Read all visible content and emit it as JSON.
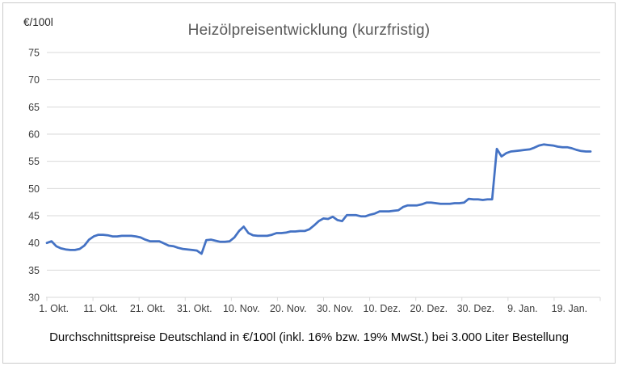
{
  "chart": {
    "colors": {
      "line": "#4472C4",
      "gridline": "#D9D9D9",
      "axis_line": "#D9D9D9",
      "axis_label": "#3D3D3D",
      "title": "#595959",
      "caption": "#0D0D0D"
    }
  },
  "chart_data": {
    "type": "line",
    "title": "Heizölpreisentwicklung (kurzfristig)",
    "y_axis_unit": "€/100l",
    "caption": "Durchschnittspreise Deutschland in €/100l (inkl. 16% bzw. 19% MwSt.) bei 3.000 Liter Bestellung",
    "ylim": [
      30,
      75
    ],
    "y_ticks": [
      30,
      35,
      40,
      45,
      50,
      55,
      60,
      65,
      70,
      75
    ],
    "x_tick_labels": [
      "1. Okt.",
      "11. Okt.",
      "21. Okt.",
      "31. Okt.",
      "10. Nov.",
      "20. Nov.",
      "30. Nov.",
      "10. Dez.",
      "20. Dez.",
      "30. Dez.",
      "9. Jan.",
      "19. Jan."
    ],
    "x_frequency": "daily",
    "x_start_label": "1. Okt.",
    "grid": true,
    "legend": "none",
    "values": [
      40.0,
      40.3,
      39.4,
      39.0,
      38.8,
      38.7,
      38.7,
      38.9,
      39.5,
      40.6,
      41.2,
      41.5,
      41.5,
      41.4,
      41.2,
      41.2,
      41.3,
      41.3,
      41.3,
      41.2,
      41.0,
      40.6,
      40.3,
      40.3,
      40.3,
      39.9,
      39.5,
      39.4,
      39.1,
      38.9,
      38.8,
      38.7,
      38.6,
      38.0,
      40.5,
      40.6,
      40.4,
      40.2,
      40.2,
      40.3,
      41.0,
      42.2,
      43.0,
      41.8,
      41.4,
      41.3,
      41.3,
      41.3,
      41.5,
      41.8,
      41.8,
      41.9,
      42.1,
      42.1,
      42.2,
      42.2,
      42.5,
      43.2,
      44.0,
      44.5,
      44.4,
      44.8,
      44.2,
      44.0,
      45.1,
      45.1,
      45.1,
      44.9,
      44.9,
      45.2,
      45.4,
      45.8,
      45.8,
      45.8,
      45.9,
      46.0,
      46.6,
      46.9,
      46.9,
      46.9,
      47.1,
      47.4,
      47.4,
      47.3,
      47.2,
      47.2,
      47.2,
      47.3,
      47.3,
      47.4,
      48.1,
      48.0,
      48.0,
      47.9,
      48.0,
      48.0,
      57.3,
      55.9,
      56.5,
      56.8,
      56.9,
      57.0,
      57.1,
      57.2,
      57.5,
      57.9,
      58.1,
      58.0,
      57.9,
      57.7,
      57.6,
      57.6,
      57.4,
      57.1,
      56.9,
      56.8,
      56.8
    ]
  }
}
